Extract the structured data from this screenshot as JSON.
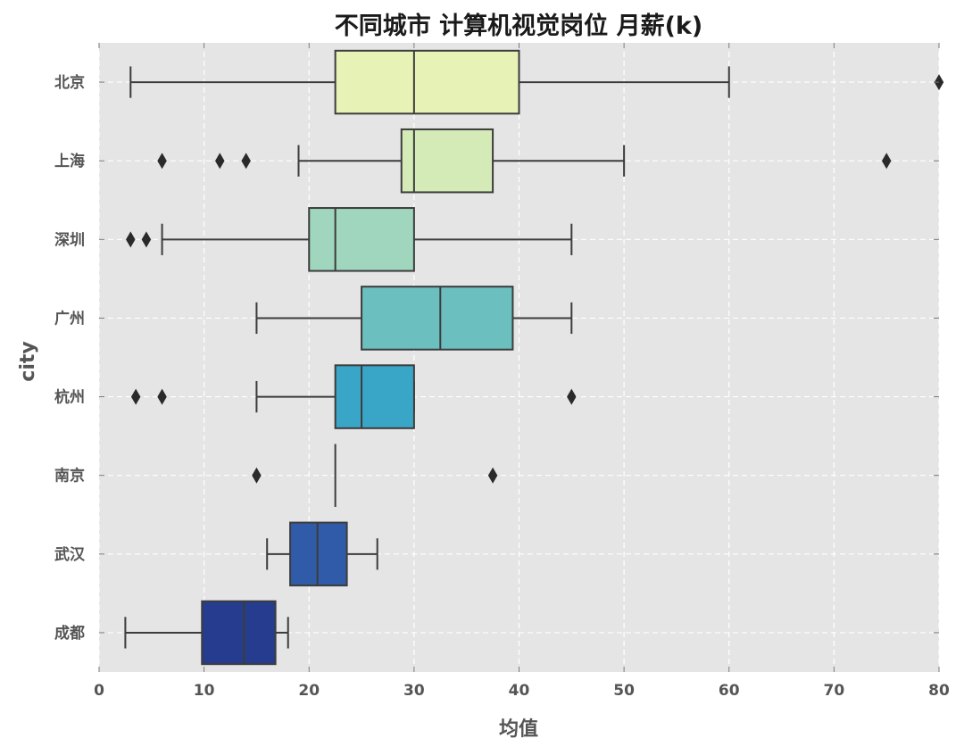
{
  "chart_data": {
    "type": "box",
    "title": "不同城市 计算机视觉岗位 月薪(k)",
    "xlabel": "均值",
    "ylabel": "city",
    "xlim": [
      0,
      80
    ],
    "x_ticks": [
      0,
      10,
      20,
      30,
      40,
      50,
      60,
      70,
      80
    ],
    "grid": true,
    "orientation": "horizontal",
    "categories": [
      "北京",
      "上海",
      "深圳",
      "广州",
      "杭州",
      "南京",
      "武汉",
      "成都"
    ],
    "boxes": [
      {
        "city": "北京",
        "whisker_low": 3,
        "q1": 22.5,
        "median": 30,
        "q3": 40,
        "whisker_high": 60,
        "outliers": [
          80
        ],
        "color": "#e7f2b6"
      },
      {
        "city": "上海",
        "whisker_low": 19,
        "q1": 28.8,
        "median": 30,
        "q3": 37.5,
        "whisker_high": 50,
        "outliers": [
          6,
          11.5,
          14,
          75
        ],
        "color": "#d4ebb7"
      },
      {
        "city": "深圳",
        "whisker_low": 6,
        "q1": 20,
        "median": 22.5,
        "q3": 30,
        "whisker_high": 45,
        "outliers": [
          3,
          4.5
        ],
        "color": "#9fd6bd"
      },
      {
        "city": "广州",
        "whisker_low": 15,
        "q1": 25,
        "median": 32.5,
        "q3": 39.4,
        "whisker_high": 45,
        "outliers": [],
        "color": "#6bbfbf"
      },
      {
        "city": "杭州",
        "whisker_low": 15,
        "q1": 22.5,
        "median": 25,
        "q3": 30,
        "whisker_high": 30,
        "outliers": [
          3.5,
          6,
          45
        ],
        "color": "#3aa6c7"
      },
      {
        "city": "南京",
        "whisker_low": 22.5,
        "q1": 22.5,
        "median": 22.5,
        "q3": 22.5,
        "whisker_high": 22.5,
        "outliers": [
          15,
          37.5
        ],
        "color": "#2f80b9"
      },
      {
        "city": "武汉",
        "whisker_low": 16,
        "q1": 18.2,
        "median": 20.8,
        "q3": 23.6,
        "whisker_high": 26.5,
        "outliers": [],
        "color": "#2f5ba8"
      },
      {
        "city": "成都",
        "whisker_low": 2.5,
        "q1": 9.8,
        "median": 13.8,
        "q3": 16.8,
        "whisker_high": 18,
        "outliers": [],
        "color": "#263d8f"
      }
    ]
  }
}
